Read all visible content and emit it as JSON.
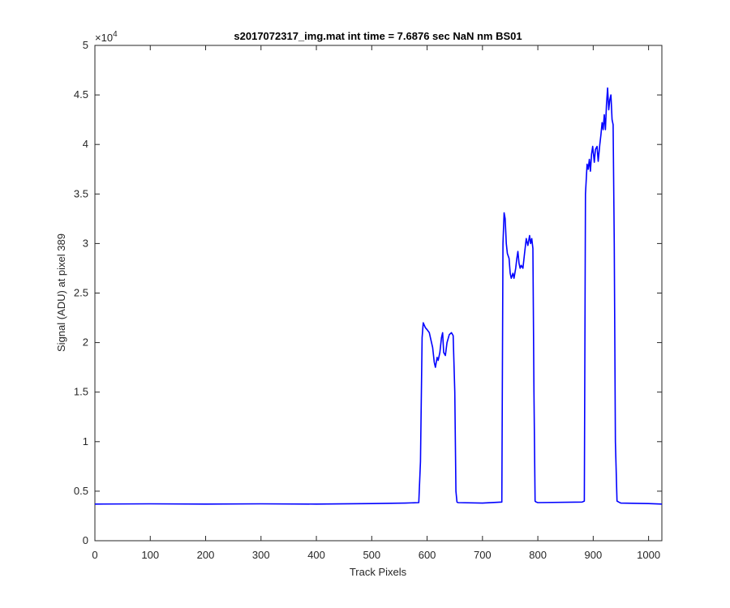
{
  "chart_data": {
    "type": "line",
    "title": "s2017072317_img.mat int time = 7.6876 sec  NaN nm BS01",
    "xlabel": "Track Pixels",
    "ylabel": "Signal (ADU) at pixel 389",
    "xlim": [
      0,
      1024
    ],
    "ylim": [
      0,
      50000
    ],
    "y_exponent_label": "×10",
    "y_exponent_power": "4",
    "x_ticks": [
      0,
      100,
      200,
      300,
      400,
      500,
      600,
      700,
      800,
      900,
      1000
    ],
    "x_tick_labels": [
      "0",
      "100",
      "200",
      "300",
      "400",
      "500",
      "600",
      "700",
      "800",
      "900",
      "1000"
    ],
    "y_ticks": [
      0,
      5000,
      10000,
      15000,
      20000,
      25000,
      30000,
      35000,
      40000,
      45000,
      50000
    ],
    "y_tick_labels": [
      "0",
      "0.5",
      "1",
      "1.5",
      "2",
      "2.5",
      "3",
      "3.5",
      "4",
      "4.5",
      "5"
    ],
    "grid": false,
    "line_color": "#0000ff",
    "series": [
      {
        "x": [
          0,
          100,
          200,
          300,
          400,
          500,
          560,
          585,
          588,
          591,
          593,
          597,
          600,
          604,
          608,
          610,
          613,
          615,
          618,
          620,
          623,
          626,
          628,
          630,
          633,
          636,
          640,
          644,
          647,
          650,
          652,
          654,
          656,
          700,
          735,
          737,
          739,
          741,
          743,
          745,
          748,
          750,
          752,
          755,
          757,
          760,
          762,
          764,
          766,
          768,
          770,
          773,
          776,
          779,
          782,
          785,
          787,
          789,
          791,
          793,
          795,
          797,
          800,
          880,
          884,
          886,
          889,
          891,
          893,
          895,
          897,
          899,
          902,
          904,
          907,
          909,
          912,
          914,
          916,
          918,
          920,
          922,
          924,
          926,
          928,
          930,
          932,
          934,
          936,
          938,
          940,
          943,
          946,
          950,
          1000,
          1024
        ],
        "y": [
          3700,
          3720,
          3700,
          3720,
          3700,
          3750,
          3800,
          3850,
          8000,
          20500,
          22000,
          21500,
          21300,
          21000,
          20000,
          19500,
          18000,
          17500,
          18500,
          18200,
          19000,
          20500,
          21000,
          19000,
          18700,
          20000,
          20800,
          21000,
          20700,
          15000,
          5000,
          3900,
          3850,
          3800,
          3900,
          30000,
          33100,
          32500,
          30000,
          29000,
          28500,
          27000,
          26500,
          27000,
          26500,
          27500,
          28500,
          29200,
          28000,
          27500,
          27800,
          27500,
          29000,
          30500,
          29800,
          30800,
          30000,
          30500,
          29500,
          15000,
          4000,
          3900,
          3850,
          3900,
          4000,
          35000,
          38000,
          37500,
          38500,
          37300,
          39000,
          39800,
          38200,
          39500,
          39800,
          38300,
          40000,
          41000,
          42200,
          41500,
          43000,
          41500,
          44000,
          45700,
          43500,
          44500,
          45000,
          42500,
          42000,
          30000,
          10000,
          4000,
          3900,
          3800,
          3750,
          3700
        ]
      }
    ]
  }
}
